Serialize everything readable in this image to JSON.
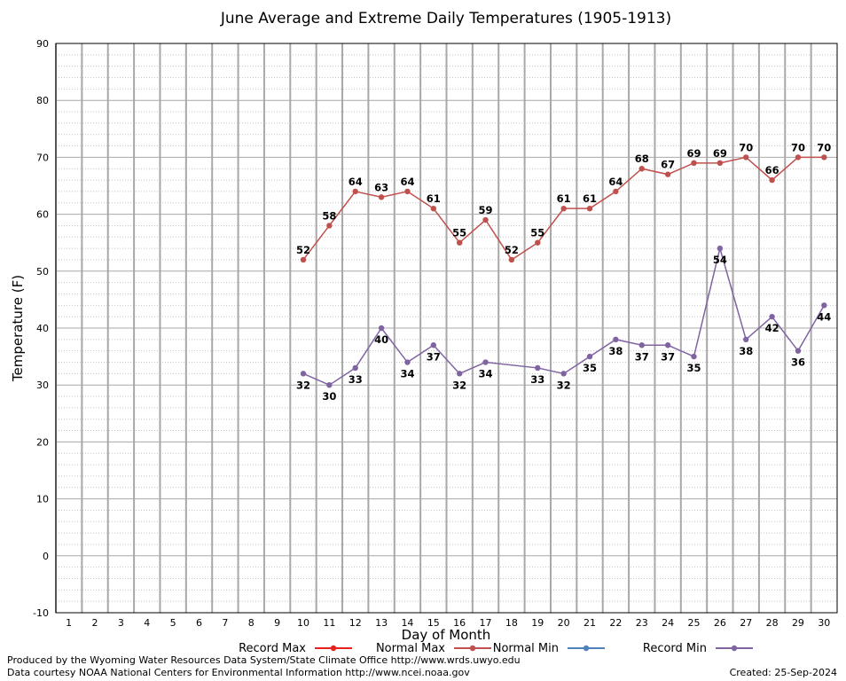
{
  "chart_data": {
    "type": "line",
    "title": "June Average and Extreme Daily Temperatures (1905-1913)",
    "xlabel": "Day of Month",
    "ylabel": "Temperature (F)",
    "ylim": [
      -10,
      90
    ],
    "xlim": [
      0.5,
      30.5
    ],
    "y_ticks": [
      -10,
      0,
      10,
      20,
      30,
      40,
      50,
      60,
      70,
      80,
      90
    ],
    "x_ticks": [
      1,
      2,
      3,
      4,
      5,
      6,
      7,
      8,
      9,
      10,
      11,
      12,
      13,
      14,
      15,
      16,
      17,
      18,
      19,
      20,
      21,
      22,
      23,
      24,
      25,
      26,
      27,
      28,
      29,
      30
    ],
    "grid": true,
    "legend_position": "bottom-center",
    "series": [
      {
        "name": "Record Max",
        "color": "#e8201e",
        "x": [],
        "values": []
      },
      {
        "name": "Normal Max",
        "color": "#c0504d",
        "x": [
          10,
          11,
          12,
          13,
          14,
          15,
          16,
          17,
          18,
          19,
          20,
          21,
          22,
          23,
          24,
          25,
          26,
          27,
          28,
          29,
          30
        ],
        "values": [
          52,
          58,
          64,
          63,
          64,
          61,
          55,
          59,
          52,
          55,
          61,
          61,
          64,
          68,
          67,
          69,
          69,
          70,
          66,
          70,
          70
        ],
        "label_position": "above"
      },
      {
        "name": "Normal Min",
        "color": "#4f81bd",
        "x": [],
        "values": []
      },
      {
        "name": "Record Min",
        "color": "#8064a2",
        "x": [
          10,
          11,
          12,
          13,
          14,
          15,
          16,
          17,
          19,
          20,
          21,
          22,
          23,
          24,
          25,
          26,
          27,
          28,
          29,
          30
        ],
        "values": [
          32,
          30,
          33,
          40,
          34,
          37,
          32,
          34,
          33,
          32,
          35,
          38,
          37,
          37,
          35,
          54,
          38,
          42,
          36,
          44
        ],
        "label_position": "below"
      }
    ]
  },
  "footer": {
    "produced_by": "Produced by the Wyoming Water Resources Data System/State Climate Office http://www.wrds.uwyo.edu",
    "data_courtesy": "Data courtesy NOAA National Centers for Environmental Information http://www.ncei.noaa.gov",
    "created": "Created:  25-Sep-2024"
  }
}
